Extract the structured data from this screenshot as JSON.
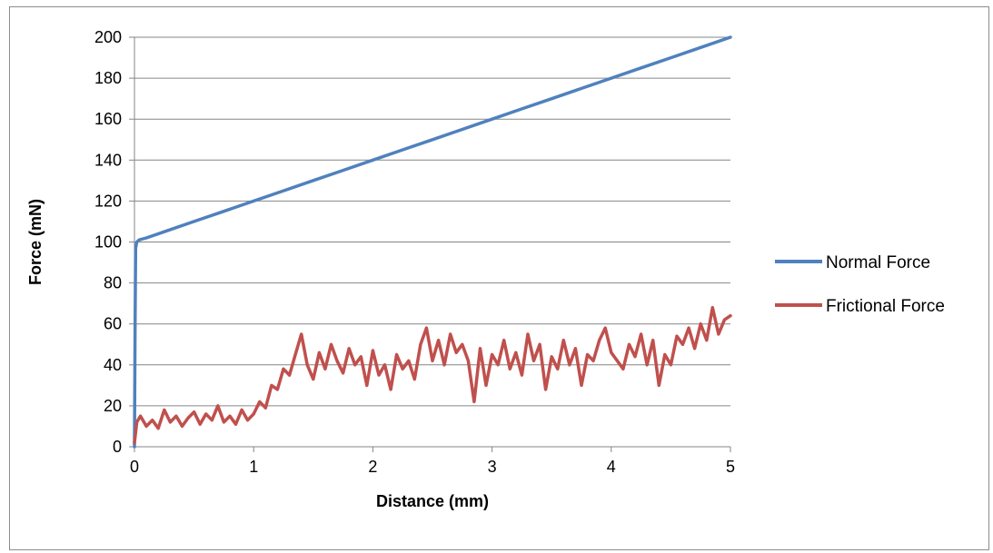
{
  "chart_data": {
    "type": "line",
    "title": "",
    "xlabel": "Distance (mm)",
    "ylabel": "Force (mN)",
    "xlim": [
      0,
      5
    ],
    "ylim": [
      0,
      200
    ],
    "xticks": [
      0,
      1,
      2,
      3,
      4,
      5
    ],
    "yticks": [
      0,
      20,
      40,
      60,
      80,
      100,
      120,
      140,
      160,
      180,
      200
    ],
    "xtick_labels": [
      "0",
      "1",
      "2",
      "3",
      "4",
      "5"
    ],
    "ytick_labels": [
      "0",
      "20",
      "40",
      "60",
      "80",
      "100",
      "120",
      "140",
      "160",
      "180",
      "200"
    ],
    "grid": "horizontal",
    "legend_position": "right",
    "series": [
      {
        "name": "Normal Force",
        "color": "#4f81bd",
        "x": [
          0,
          0.005,
          0.01,
          0.02,
          0.04,
          0.1,
          0.25,
          0.5,
          0.75,
          1.0,
          1.25,
          1.5,
          1.75,
          2.0,
          2.25,
          2.5,
          2.75,
          3.0,
          3.25,
          3.5,
          3.75,
          4.0,
          4.25,
          4.5,
          4.75,
          5.0
        ],
        "y": [
          0,
          60,
          97,
          100,
          101,
          102,
          105,
          110,
          115,
          120,
          125,
          130,
          135,
          140,
          145,
          150,
          155,
          160,
          165,
          170,
          175,
          180,
          185,
          190,
          195,
          200
        ]
      },
      {
        "name": "Frictional Force",
        "color": "#c0504d",
        "x": [
          0,
          0.02,
          0.05,
          0.1,
          0.15,
          0.2,
          0.25,
          0.3,
          0.35,
          0.4,
          0.45,
          0.5,
          0.55,
          0.6,
          0.65,
          0.7,
          0.75,
          0.8,
          0.85,
          0.9,
          0.95,
          1.0,
          1.05,
          1.1,
          1.15,
          1.2,
          1.25,
          1.3,
          1.35,
          1.4,
          1.45,
          1.5,
          1.55,
          1.6,
          1.65,
          1.7,
          1.75,
          1.8,
          1.85,
          1.9,
          1.95,
          2.0,
          2.05,
          2.1,
          2.15,
          2.2,
          2.25,
          2.3,
          2.35,
          2.4,
          2.45,
          2.5,
          2.55,
          2.6,
          2.65,
          2.7,
          2.75,
          2.8,
          2.85,
          2.9,
          2.95,
          3.0,
          3.05,
          3.1,
          3.15,
          3.2,
          3.25,
          3.3,
          3.35,
          3.4,
          3.45,
          3.5,
          3.55,
          3.6,
          3.65,
          3.7,
          3.75,
          3.8,
          3.85,
          3.9,
          3.95,
          4.0,
          4.05,
          4.1,
          4.15,
          4.2,
          4.25,
          4.3,
          4.35,
          4.4,
          4.45,
          4.5,
          4.55,
          4.6,
          4.65,
          4.7,
          4.75,
          4.8,
          4.85,
          4.9,
          4.95,
          5.0
        ],
        "y": [
          2,
          12,
          15,
          10,
          13,
          9,
          18,
          12,
          15,
          10,
          14,
          17,
          11,
          16,
          13,
          20,
          12,
          15,
          11,
          18,
          13,
          16,
          22,
          19,
          30,
          28,
          38,
          35,
          45,
          55,
          40,
          33,
          46,
          38,
          50,
          42,
          36,
          48,
          40,
          44,
          30,
          47,
          35,
          40,
          28,
          45,
          38,
          42,
          33,
          50,
          58,
          42,
          52,
          40,
          55,
          46,
          50,
          42,
          22,
          48,
          30,
          45,
          40,
          52,
          38,
          46,
          35,
          55,
          42,
          50,
          28,
          44,
          38,
          52,
          40,
          48,
          30,
          45,
          42,
          52,
          58,
          46,
          42,
          38,
          50,
          44,
          55,
          40,
          52,
          30,
          45,
          40,
          54,
          50,
          58,
          48,
          60,
          52,
          68,
          55,
          62,
          64
        ]
      }
    ]
  }
}
